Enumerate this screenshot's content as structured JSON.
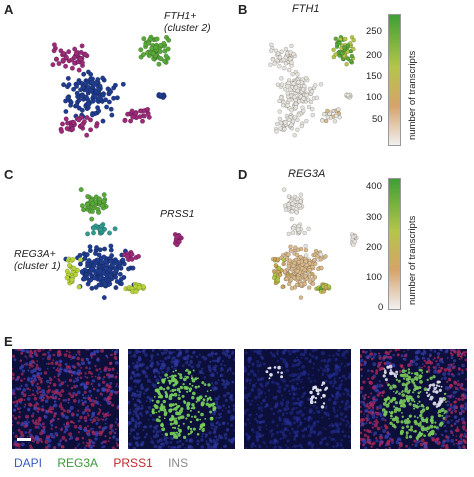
{
  "panels": {
    "a": {
      "letter": "A",
      "label": "FTH1+\n(cluster 2)"
    },
    "b": {
      "letter": "B",
      "title": "FTH1",
      "colorbar": {
        "label": "number of transcripts",
        "ticks": [
          "250",
          "200",
          "150",
          "100",
          "50"
        ],
        "low_color": "#f0f0f0",
        "mid_color": "#d6a36a",
        "high_color": "#3f9f35"
      }
    },
    "c": {
      "letter": "C",
      "label_prss1": "PRSS1",
      "label_reg3a": "REG3A+\n(cluster 1)"
    },
    "d": {
      "letter": "D",
      "title": "REG3A",
      "colorbar": {
        "label": "number of transcripts",
        "ticks": [
          "400",
          "300",
          "200",
          "100",
          "0"
        ],
        "low_color": "#f0f0f0",
        "mid_color": "#d6a36a",
        "high_color": "#3f9f35"
      }
    },
    "e": {
      "letter": "E"
    }
  },
  "legend": {
    "dapi": {
      "text": "DAPI",
      "color": "#3a5bbf"
    },
    "reg3a": {
      "text": "REG3A",
      "color": "#3a9a35"
    },
    "prss1": {
      "text": "PRSS1",
      "color": "#c0282a"
    },
    "ins": {
      "text": "INS",
      "color": "#8a8a8a"
    }
  },
  "colors": {
    "cluster_blue": "#1f3c8f",
    "cluster_magenta": "#9b2a78",
    "cluster_green": "#59a83a",
    "cluster_lime": "#b7d33a",
    "cluster_teal": "#2f9a8e"
  }
}
